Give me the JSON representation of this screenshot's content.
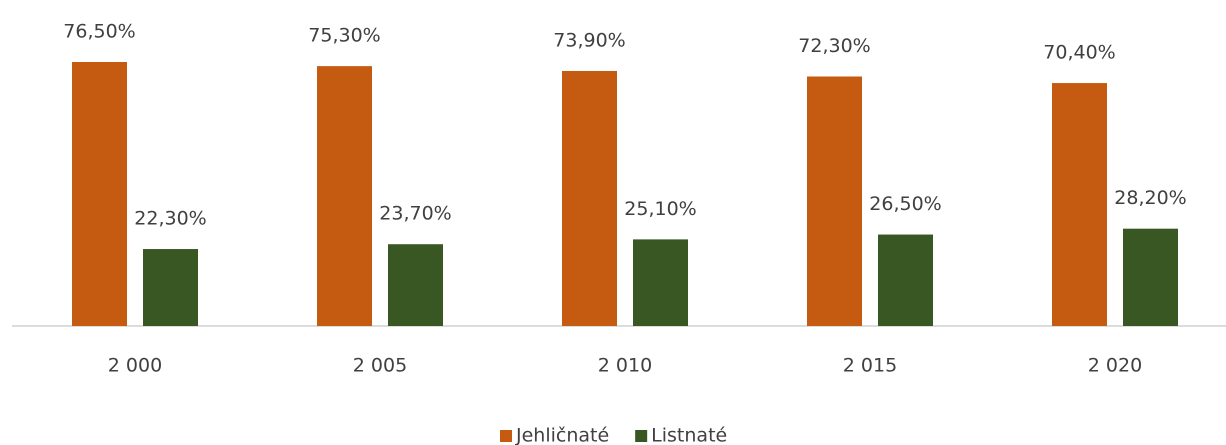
{
  "chart_data": {
    "type": "bar",
    "categories": [
      "2 000",
      "2 005",
      "2 010",
      "2 015",
      "2 020"
    ],
    "series": [
      {
        "name": "Jehličnaté",
        "color": "#c55a11",
        "values": [
          76.5,
          75.3,
          73.9,
          72.3,
          70.4
        ],
        "value_labels": [
          "76,50%",
          "75,30%",
          "73,90%",
          "72,30%",
          "70,40%"
        ]
      },
      {
        "name": "Listnaté",
        "color": "#385723",
        "values": [
          22.3,
          23.7,
          25.1,
          26.5,
          28.2
        ],
        "value_labels": [
          "22,30%",
          "23,70%",
          "25,10%",
          "26,50%",
          "28,20%"
        ]
      }
    ],
    "legend": "bottom"
  }
}
